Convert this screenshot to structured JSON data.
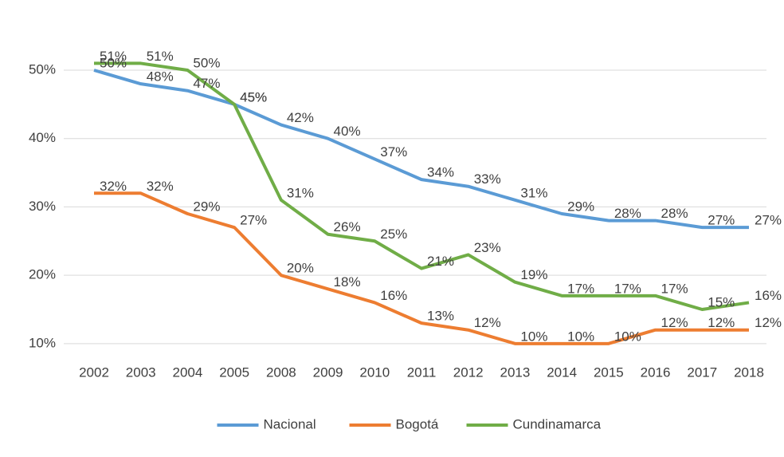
{
  "chart_data": {
    "type": "line",
    "categories": [
      "2002",
      "2003",
      "2004",
      "2005",
      "2008",
      "2009",
      "2010",
      "2011",
      "2012",
      "2013",
      "2014",
      "2015",
      "2016",
      "2017",
      "2018"
    ],
    "series": [
      {
        "name": "Nacional",
        "color": "#5b9bd5",
        "values": [
          50,
          48,
          47,
          45,
          42,
          40,
          37,
          34,
          33,
          31,
          29,
          28,
          28,
          27,
          27
        ],
        "value_labels": [
          "50%",
          "48%",
          "47%",
          "45%",
          "42%",
          "40%",
          "37%",
          "34%",
          "33%",
          "31%",
          "29%",
          "28%",
          "28%",
          "27%",
          "27%"
        ]
      },
      {
        "name": "Bogotá",
        "color": "#ed7d31",
        "values": [
          32,
          32,
          29,
          27,
          20,
          18,
          16,
          13,
          12,
          10,
          10,
          10,
          12,
          12,
          12
        ],
        "value_labels": [
          "32%",
          "32%",
          "29%",
          "27%",
          "20%",
          "18%",
          "16%",
          "13%",
          "12%",
          "10%",
          "10%",
          "10%",
          "12%",
          "12%",
          "12%"
        ]
      },
      {
        "name": "Cundinamarca",
        "color": "#70ad47",
        "values": [
          51,
          51,
          50,
          45,
          31,
          26,
          25,
          21,
          23,
          19,
          17,
          17,
          17,
          15,
          16
        ],
        "value_labels": [
          "51%",
          "51%",
          "50%",
          "45%",
          "31%",
          "26%",
          "25%",
          "21%",
          "23%",
          "19%",
          "17%",
          "17%",
          "17%",
          "15%",
          "16%"
        ]
      }
    ],
    "ylim": [
      8,
      57
    ],
    "yticks": [
      {
        "value": 10,
        "label": "10%"
      },
      {
        "value": 20,
        "label": "20%"
      },
      {
        "value": 30,
        "label": "30%"
      },
      {
        "value": 40,
        "label": "40%"
      },
      {
        "value": 50,
        "label": "50%"
      }
    ],
    "grid": true,
    "legend": "bottom"
  }
}
